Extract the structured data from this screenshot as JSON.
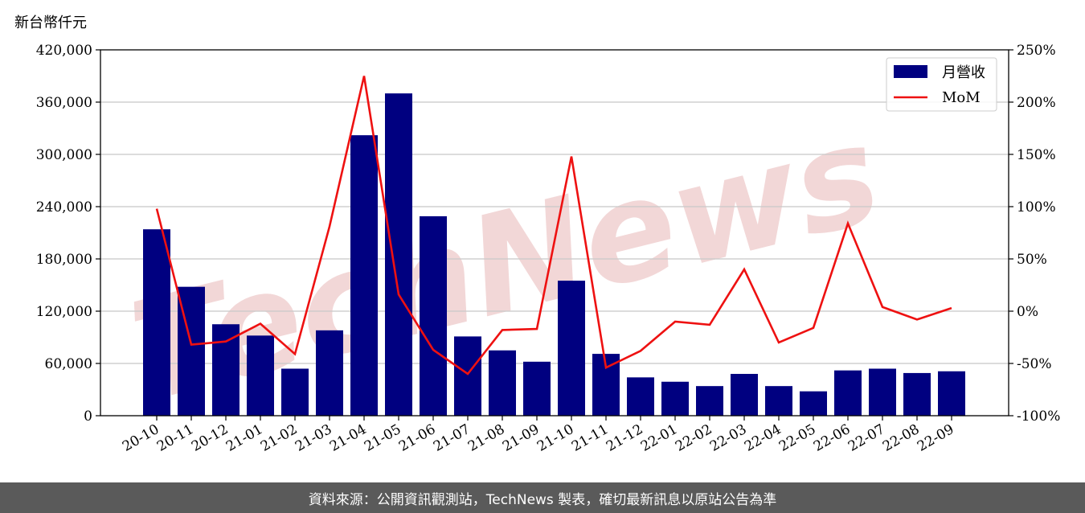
{
  "watermark": "TechNews",
  "footer": "資料來源：公開資訊觀測站，TechNews 製表，確切最新訊息以原站公告為準",
  "colors": {
    "bar": "#000080",
    "line": "#ee1111",
    "footer_bg": "#5a5a5a"
  },
  "chart_data": {
    "type": "bar",
    "unit_label": "新台幣仟元",
    "categories": [
      "20-10",
      "20-11",
      "20-12",
      "21-01",
      "21-02",
      "21-03",
      "21-04",
      "21-05",
      "21-06",
      "21-07",
      "21-08",
      "21-09",
      "21-10",
      "21-11",
      "21-12",
      "22-01",
      "22-02",
      "22-03",
      "22-04",
      "22-05",
      "22-06",
      "22-07",
      "22-08",
      "22-09"
    ],
    "series": [
      {
        "name": "月營收",
        "type": "bar",
        "axis": "left",
        "values": [
          214000,
          148000,
          105000,
          92000,
          54000,
          98000,
          322000,
          370000,
          229000,
          91000,
          75000,
          62000,
          155000,
          71000,
          44000,
          39000,
          34000,
          48000,
          34000,
          28000,
          52000,
          54000,
          49000,
          51000
        ]
      },
      {
        "name": "MoM",
        "type": "line",
        "axis": "right",
        "values": [
          98,
          -32,
          -29,
          -12,
          -41,
          81,
          225,
          16,
          -37,
          -60,
          -18,
          -17,
          148,
          -54,
          -38,
          -10,
          -13,
          40,
          -30,
          -16,
          84,
          4,
          -8,
          3
        ]
      }
    ],
    "y_left": {
      "min": 0,
      "max": 420000,
      "ticks": [
        "0",
        "60,000",
        "120,000",
        "180,000",
        "240,000",
        "300,000",
        "360,000",
        "420,000"
      ]
    },
    "y_right": {
      "min": -100,
      "max": 250,
      "ticks": [
        "-100%",
        "-50%",
        "0%",
        "50%",
        "100%",
        "150%",
        "200%",
        "250%"
      ]
    },
    "grid": "horizontal",
    "legend": "top-right"
  }
}
